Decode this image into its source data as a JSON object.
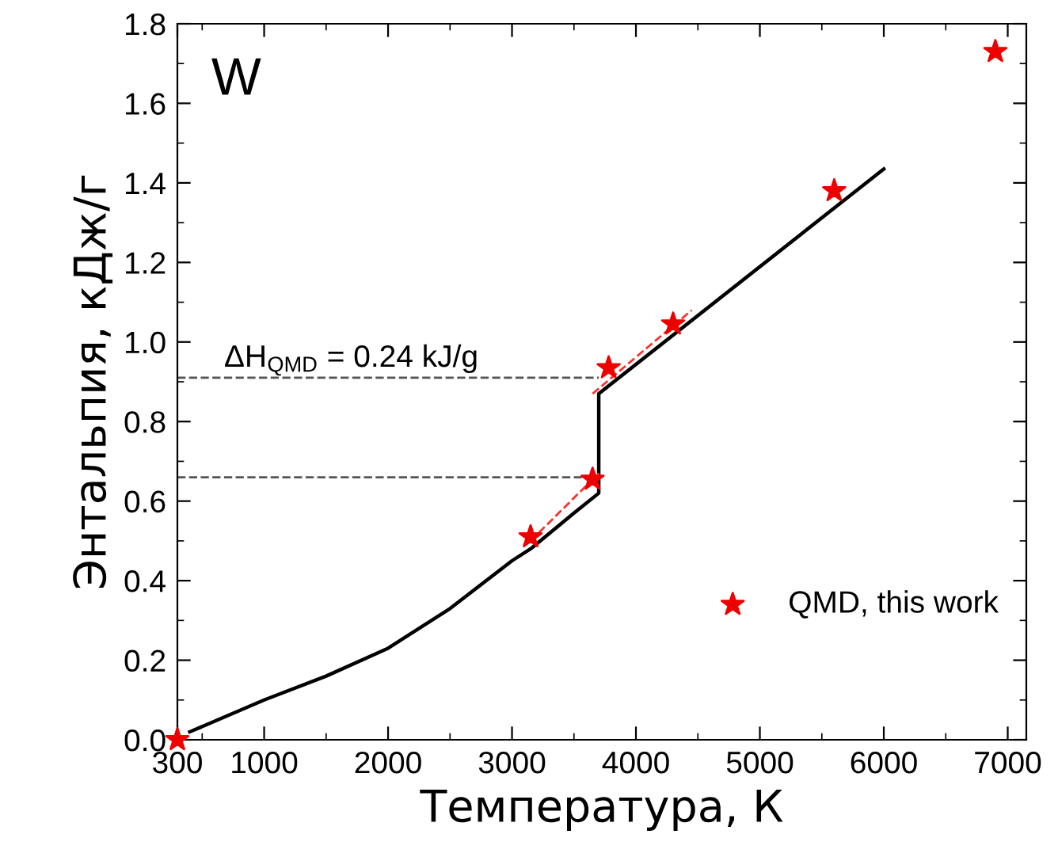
{
  "chart_data": {
    "type": "line",
    "xlabel": "Температура, К",
    "ylabel": "Энтальпия, кДж/г",
    "xlim": [
      300,
      7150
    ],
    "xticks": [
      300,
      1000,
      2000,
      3000,
      4000,
      5000,
      6000,
      7000
    ],
    "ylim": [
      0,
      1.8
    ],
    "yticks": [
      {
        "value": 0,
        "label": "0.0"
      },
      0.2,
      0.4,
      0.6,
      0.8,
      {
        "value": 1,
        "label": "1.0"
      },
      1.2,
      1.4,
      1.6,
      1.8
    ],
    "grid": false,
    "legend": "bottom right",
    "annotations": [
      {
        "text": "W"
      },
      {
        "text": "ΔH$_{QMD}$ = 0.24 kJ/g"
      }
    ],
    "series": [
      {
        "color": "#000000",
        "line_style": "solid",
        "marker": "none",
        "x": [
          400,
          1000,
          1500,
          2000,
          2500,
          3000,
          3150,
          3500,
          3700,
          3700,
          6000
        ],
        "values": [
          0.02,
          0.1,
          0.16,
          0.23,
          0.33,
          0.45,
          0.48,
          0.57,
          0.62,
          0.87,
          1.435
        ]
      },
      {
        "color": "#555555",
        "line_style": "dashed",
        "marker": "none",
        "x": [
          300,
          3700
        ],
        "values": [
          0.91,
          0.91
        ]
      },
      {
        "color": "#555555",
        "line_style": "dashed",
        "marker": "none",
        "x": [
          300,
          3700
        ],
        "values": [
          0.66,
          0.66
        ]
      },
      {
        "color": "#ff3030",
        "line_style": "dashed",
        "marker": "none",
        "x": [
          3150,
          3700
        ],
        "values": [
          0.5,
          0.67
        ]
      },
      {
        "color": "#ff3030",
        "line_style": "dashed",
        "marker": "none",
        "x": [
          3650,
          4450
        ],
        "values": [
          0.87,
          1.08
        ]
      },
      {
        "type": "scatter",
        "name": "QMD, this work",
        "color": "#ee0000",
        "marker": "star",
        "x": [
          300,
          3150,
          3650,
          3780,
          4300,
          5600,
          6900
        ],
        "values": [
          0,
          0.51,
          0.655,
          0.935,
          1.045,
          1.38,
          1.73
        ]
      }
    ]
  }
}
